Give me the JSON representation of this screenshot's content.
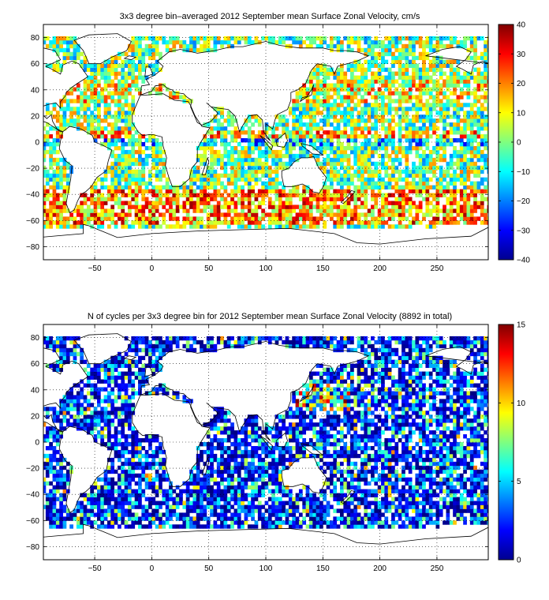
{
  "chart_data": [
    {
      "type": "heatmap",
      "title": "3x3 degree bin–averaged 2012 September mean Surface Zonal Velocity, cm/s",
      "xlim": [
        -95,
        295
      ],
      "ylim": [
        -90,
        90
      ],
      "xticks": [
        -50,
        0,
        50,
        100,
        150,
        200,
        250
      ],
      "yticks": [
        -80,
        -60,
        -40,
        -20,
        0,
        20,
        40,
        60,
        80
      ],
      "bin_size_deg": 3,
      "grid": "dotted",
      "colorbar": {
        "min": -40,
        "max": 40,
        "ticks": [
          -40,
          -30,
          -20,
          -10,
          0,
          10,
          20,
          30,
          40
        ],
        "colormap": "jet",
        "placement": "right"
      }
    },
    {
      "type": "heatmap",
      "title": "N of cycles per 3x3 degree bin for 2012 September mean Surface Zonal Velocity (8892 in total)",
      "xlim": [
        -95,
        295
      ],
      "ylim": [
        -90,
        90
      ],
      "xticks": [
        -50,
        0,
        50,
        100,
        150,
        200,
        250
      ],
      "yticks": [
        -80,
        -60,
        -40,
        -20,
        0,
        20,
        40,
        60,
        80
      ],
      "bin_size_deg": 3,
      "grid": "dotted",
      "colorbar": {
        "min": 0,
        "max": 15,
        "ticks": [
          0,
          5,
          10,
          15
        ],
        "colormap": "jet",
        "placement": "right"
      }
    }
  ]
}
